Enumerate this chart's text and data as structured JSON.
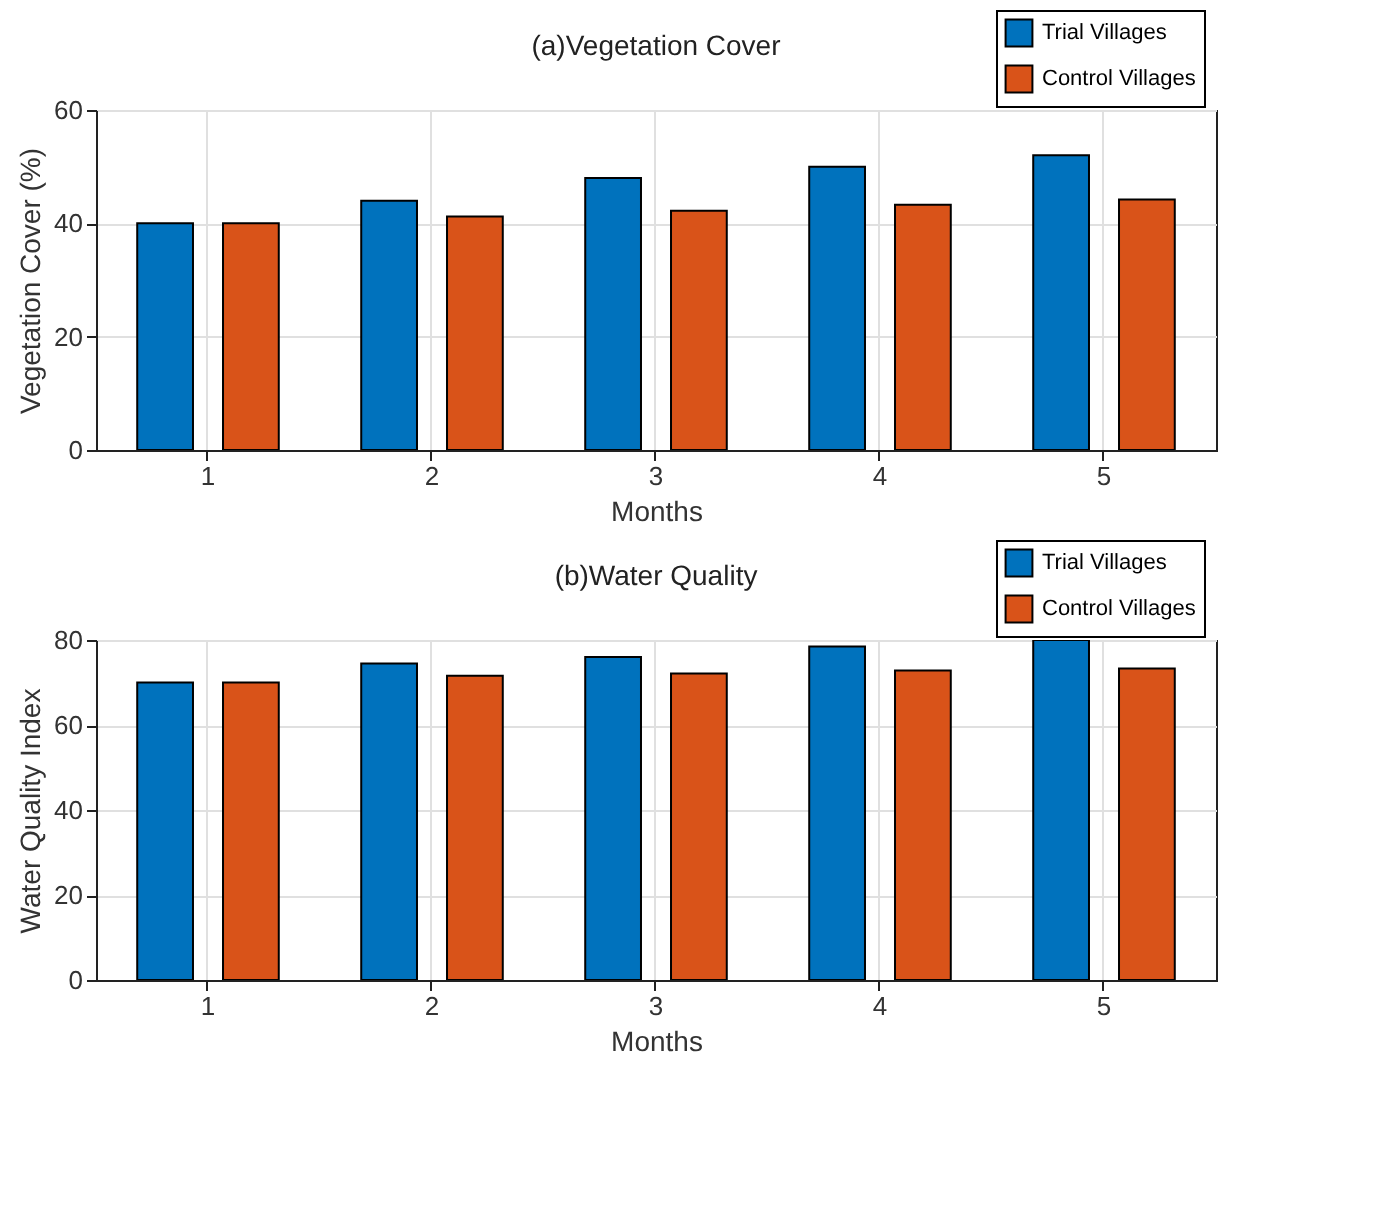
{
  "chart_data": [
    {
      "type": "bar",
      "title": "(a)Vegetation Cover",
      "xlabel": "Months",
      "ylabel": "Vegetation Cover (%)",
      "categories": [
        "1",
        "2",
        "3",
        "4",
        "5"
      ],
      "series": [
        {
          "name": "Trial Villages",
          "color": "#0072bd",
          "values": [
            40,
            44,
            48,
            50,
            52
          ]
        },
        {
          "name": "Control Villages",
          "color": "#d95319",
          "values": [
            40,
            41.2,
            42.2,
            43.3,
            44.2
          ]
        }
      ],
      "ylim": [
        0,
        60
      ],
      "yticks": [
        0,
        20,
        40,
        60
      ],
      "grid": true,
      "legend": "top right"
    },
    {
      "type": "bar",
      "title": "(b)Water Quality",
      "xlabel": "Months",
      "ylabel": "Water Quality Index",
      "categories": [
        "1",
        "2",
        "3",
        "4",
        "5"
      ],
      "series": [
        {
          "name": "Trial Villages",
          "color": "#0072bd",
          "values": [
            70,
            74.5,
            76,
            78.5,
            80
          ]
        },
        {
          "name": "Control Villages",
          "color": "#d95319",
          "values": [
            70,
            71.6,
            72.1,
            72.8,
            73.3
          ]
        }
      ],
      "ylim": [
        0,
        80
      ],
      "yticks": [
        0,
        20,
        40,
        60,
        80
      ],
      "grid": true,
      "legend": "top right"
    }
  ]
}
